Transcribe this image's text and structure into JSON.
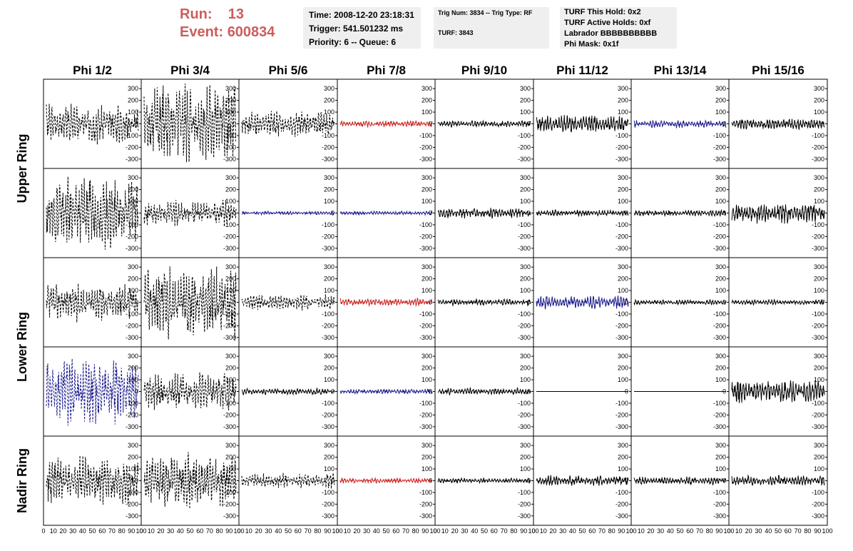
{
  "header": {
    "run_label": "Run:",
    "run_value": "13",
    "event_label": "Event:",
    "event_value": "600834",
    "time": "Time: 2008-12-20 23:18:31",
    "trigger": "Trigger: 541.501232 ms",
    "priority": "Priority: 6 -- Queue: 6",
    "trig_num": "Trig Num: 3834 -- Trig Type: RF",
    "turf": "TURF: 3843",
    "turf_hold": "TURF This Hold: 0x2",
    "turf_active": "TURF Active Holds: 0xf",
    "labrador": "Labrador BBBBBBBBBB",
    "phi_mask": "Phi Mask: 0x1f"
  },
  "colors": {
    "black": "#000000",
    "red": "#cc2222",
    "blue": "#1a1a8c",
    "header_red": "#cd5c5c",
    "box_bg": "#efefef"
  },
  "chart_data": {
    "type": "waveform-grid",
    "columns": [
      "Phi 1/2",
      "Phi 3/4",
      "Phi 5/6",
      "Phi 7/8",
      "Phi 9/10",
      "Phi 11/12",
      "Phi 13/14",
      "Phi 15/16"
    ],
    "row_labels": [
      "Upper Ring",
      "Lower Ring",
      "Nadir Ring"
    ],
    "y_ticks": [
      "300",
      "200",
      "100",
      "0",
      "-100",
      "-200",
      "-300"
    ],
    "x_ticks": [
      "0",
      "10",
      "20",
      "30",
      "40",
      "50",
      "60",
      "70",
      "80",
      "90",
      "100"
    ],
    "ylim": [
      -380,
      380
    ],
    "xlim": [
      0,
      100
    ],
    "panels": [
      [
        {
          "color": "black",
          "style": "dashed",
          "amp": 150
        },
        {
          "color": "black",
          "style": "dashed",
          "amp": 330
        },
        {
          "color": "black",
          "style": "dashed",
          "amp": 100
        },
        {
          "color": "red",
          "style": "solid",
          "amp": 25
        },
        {
          "color": "black",
          "style": "solid",
          "amp": 25
        },
        {
          "color": "black",
          "style": "solid",
          "amp": 70
        },
        {
          "color": "blue",
          "style": "solid",
          "amp": 30
        },
        {
          "color": "black",
          "style": "solid",
          "amp": 45
        }
      ],
      [
        {
          "color": "black",
          "style": "dashed",
          "amp": 300
        },
        {
          "color": "black",
          "style": "dashed",
          "amp": 100
        },
        {
          "color": "blue",
          "style": "solid",
          "amp": 15
        },
        {
          "color": "blue",
          "style": "solid",
          "amp": 15
        },
        {
          "color": "black",
          "style": "solid",
          "amp": 40
        },
        {
          "color": "black",
          "style": "solid",
          "amp": 25
        },
        {
          "color": "black",
          "style": "solid",
          "amp": 25
        },
        {
          "color": "black",
          "style": "solid",
          "amp": 80
        }
      ],
      [
        {
          "color": "black",
          "style": "dashed",
          "amp": 150
        },
        {
          "color": "black",
          "style": "dashed",
          "amp": 300
        },
        {
          "color": "black",
          "style": "dashed",
          "amp": 60
        },
        {
          "color": "red",
          "style": "solid",
          "amp": 30
        },
        {
          "color": "black",
          "style": "solid",
          "amp": 25
        },
        {
          "color": "blue",
          "style": "solid",
          "amp": 50
        },
        {
          "color": "black",
          "style": "solid",
          "amp": 20
        },
        {
          "color": "black",
          "style": "solid",
          "amp": 20
        }
      ],
      [
        {
          "color": "blue",
          "style": "dashed",
          "amp": 280
        },
        {
          "color": "black",
          "style": "dashed",
          "amp": 150
        },
        {
          "color": "black",
          "style": "solid",
          "amp": 25
        },
        {
          "color": "blue",
          "style": "solid",
          "amp": 20
        },
        {
          "color": "black",
          "style": "solid",
          "amp": 25
        },
        {
          "color": "black",
          "style": "solid",
          "amp": 0
        },
        {
          "color": "black",
          "style": "solid",
          "amp": 0
        },
        {
          "color": "black",
          "style": "solid",
          "amp": 90
        }
      ],
      [
        {
          "color": "black",
          "style": "dashed",
          "amp": 200
        },
        {
          "color": "black",
          "style": "dashed",
          "amp": 230
        },
        {
          "color": "black",
          "style": "dashed",
          "amp": 60
        },
        {
          "color": "red",
          "style": "solid",
          "amp": 20
        },
        {
          "color": "black",
          "style": "solid",
          "amp": 20
        },
        {
          "color": "black",
          "style": "solid",
          "amp": 40
        },
        {
          "color": "black",
          "style": "solid",
          "amp": 30
        },
        {
          "color": "black",
          "style": "solid",
          "amp": 40
        }
      ]
    ]
  }
}
